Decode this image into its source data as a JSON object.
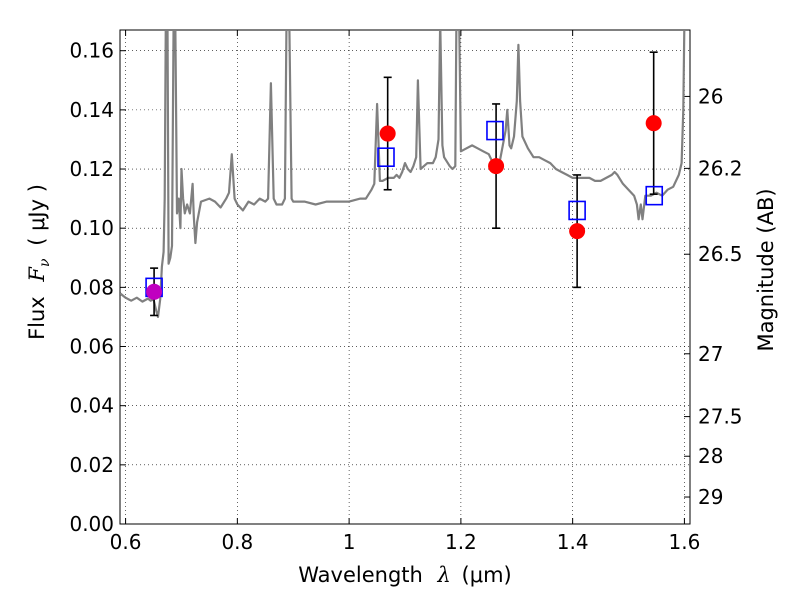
{
  "chart_data": {
    "type": "scatter",
    "xlabel_text": "Wavelength",
    "xlabel_symbol": "λ",
    "xlabel_unit": "(μm)",
    "ylabel_text": "Flux",
    "ylabel_symbol": "F",
    "ylabel_sub": "ν",
    "ylabel_unit": "( μJy )",
    "y2label": "Magnitude (AB)",
    "xlim": [
      0.59,
      1.61
    ],
    "ylim": [
      0.0,
      0.167
    ],
    "grid": true,
    "x_ticks": [
      0.6,
      0.8,
      1.0,
      1.2,
      1.4,
      1.6
    ],
    "x_tick_labels": [
      "0.6",
      "0.8",
      "1",
      "1.2",
      "1.4",
      "1.6"
    ],
    "y_ticks": [
      0.0,
      0.02,
      0.04,
      0.06,
      0.08,
      0.1,
      0.12,
      0.14,
      0.16
    ],
    "y_tick_labels": [
      "0.00",
      "0.02",
      "0.04",
      "0.06",
      "0.08",
      "0.10",
      "0.12",
      "0.14",
      "0.16"
    ],
    "y2_tick_labels": [
      "26",
      "26.2",
      "26.5",
      "27",
      "27.5",
      "28",
      "29"
    ],
    "y2_tick_values_mag": [
      26,
      26.2,
      26.5,
      27,
      27.5,
      28,
      29
    ],
    "series": [
      {
        "kind": "spectrum",
        "color": "#808080",
        "points": [
          [
            0.59,
            0.078
          ],
          [
            0.6,
            0.0765
          ],
          [
            0.61,
            0.0755
          ],
          [
            0.62,
            0.0765
          ],
          [
            0.63,
            0.0752
          ],
          [
            0.64,
            0.0762
          ],
          [
            0.645,
            0.0755
          ],
          [
            0.65,
            0.076
          ],
          [
            0.655,
            0.072
          ],
          [
            0.658,
            0.07
          ],
          [
            0.662,
            0.076
          ],
          [
            0.665,
            0.087
          ],
          [
            0.668,
            0.092
          ],
          [
            0.67,
            0.11
          ],
          [
            0.672,
            0.17
          ],
          [
            0.675,
            0.17
          ],
          [
            0.677,
            0.088
          ],
          [
            0.68,
            0.09
          ],
          [
            0.683,
            0.094
          ],
          [
            0.686,
            0.17
          ],
          [
            0.689,
            0.17
          ],
          [
            0.692,
            0.105
          ],
          [
            0.695,
            0.11
          ],
          [
            0.698,
            0.1
          ],
          [
            0.7,
            0.12
          ],
          [
            0.703,
            0.11
          ],
          [
            0.706,
            0.105
          ],
          [
            0.71,
            0.108
          ],
          [
            0.715,
            0.105
          ],
          [
            0.72,
            0.115
          ],
          [
            0.722,
            0.104
          ],
          [
            0.725,
            0.095
          ],
          [
            0.728,
            0.102
          ],
          [
            0.735,
            0.109
          ],
          [
            0.75,
            0.11
          ],
          [
            0.76,
            0.109
          ],
          [
            0.77,
            0.107
          ],
          [
            0.78,
            0.11
          ],
          [
            0.785,
            0.112
          ],
          [
            0.79,
            0.125
          ],
          [
            0.795,
            0.11
          ],
          [
            0.8,
            0.108
          ],
          [
            0.81,
            0.106
          ],
          [
            0.82,
            0.109
          ],
          [
            0.83,
            0.108
          ],
          [
            0.84,
            0.11
          ],
          [
            0.85,
            0.109
          ],
          [
            0.855,
            0.11
          ],
          [
            0.86,
            0.149
          ],
          [
            0.865,
            0.11
          ],
          [
            0.87,
            0.108
          ],
          [
            0.875,
            0.108
          ],
          [
            0.88,
            0.108
          ],
          [
            0.885,
            0.11
          ],
          [
            0.888,
            0.17
          ],
          [
            0.893,
            0.17
          ],
          [
            0.897,
            0.11
          ],
          [
            0.9,
            0.109
          ],
          [
            0.92,
            0.109
          ],
          [
            0.94,
            0.108
          ],
          [
            0.96,
            0.109
          ],
          [
            0.98,
            0.109
          ],
          [
            1.0,
            0.109
          ],
          [
            1.02,
            0.11
          ],
          [
            1.03,
            0.11
          ],
          [
            1.04,
            0.113
          ],
          [
            1.045,
            0.115
          ],
          [
            1.05,
            0.142
          ],
          [
            1.055,
            0.116
          ],
          [
            1.06,
            0.116
          ],
          [
            1.07,
            0.117
          ],
          [
            1.08,
            0.117
          ],
          [
            1.085,
            0.118
          ],
          [
            1.09,
            0.117
          ],
          [
            1.095,
            0.119
          ],
          [
            1.1,
            0.122
          ],
          [
            1.105,
            0.12
          ],
          [
            1.11,
            0.119
          ],
          [
            1.115,
            0.121
          ],
          [
            1.12,
            0.124
          ],
          [
            1.123,
            0.15
          ],
          [
            1.128,
            0.12
          ],
          [
            1.14,
            0.122
          ],
          [
            1.15,
            0.122
          ],
          [
            1.155,
            0.124
          ],
          [
            1.16,
            0.13
          ],
          [
            1.163,
            0.17
          ],
          [
            1.167,
            0.128
          ],
          [
            1.17,
            0.124
          ],
          [
            1.18,
            0.121
          ],
          [
            1.185,
            0.12
          ],
          [
            1.19,
            0.121
          ],
          [
            1.192,
            0.17
          ],
          [
            1.197,
            0.17
          ],
          [
            1.2,
            0.126
          ],
          [
            1.21,
            0.127
          ],
          [
            1.22,
            0.128
          ],
          [
            1.23,
            0.127
          ],
          [
            1.24,
            0.126
          ],
          [
            1.25,
            0.125
          ],
          [
            1.255,
            0.123
          ],
          [
            1.26,
            0.121
          ],
          [
            1.27,
            0.123
          ],
          [
            1.275,
            0.128
          ],
          [
            1.28,
            0.133
          ],
          [
            1.283,
            0.14
          ],
          [
            1.287,
            0.128
          ],
          [
            1.29,
            0.127
          ],
          [
            1.295,
            0.131
          ],
          [
            1.3,
            0.143
          ],
          [
            1.303,
            0.162
          ],
          [
            1.306,
            0.143
          ],
          [
            1.31,
            0.131
          ],
          [
            1.32,
            0.127
          ],
          [
            1.33,
            0.124
          ],
          [
            1.34,
            0.124
          ],
          [
            1.35,
            0.123
          ],
          [
            1.36,
            0.122
          ],
          [
            1.37,
            0.12
          ],
          [
            1.38,
            0.119
          ],
          [
            1.39,
            0.118
          ],
          [
            1.4,
            0.117
          ],
          [
            1.41,
            0.117
          ],
          [
            1.42,
            0.117
          ],
          [
            1.43,
            0.117
          ],
          [
            1.44,
            0.116
          ],
          [
            1.45,
            0.116
          ],
          [
            1.46,
            0.117
          ],
          [
            1.47,
            0.118
          ],
          [
            1.475,
            0.119
          ],
          [
            1.48,
            0.118
          ],
          [
            1.49,
            0.115
          ],
          [
            1.5,
            0.113
          ],
          [
            1.51,
            0.111
          ],
          [
            1.515,
            0.108
          ],
          [
            1.518,
            0.103
          ],
          [
            1.522,
            0.108
          ],
          [
            1.525,
            0.103
          ],
          [
            1.53,
            0.111
          ],
          [
            1.54,
            0.111
          ],
          [
            1.55,
            0.112
          ],
          [
            1.56,
            0.111
          ],
          [
            1.57,
            0.113
          ],
          [
            1.58,
            0.114
          ],
          [
            1.59,
            0.118
          ],
          [
            1.595,
            0.122
          ],
          [
            1.598,
            0.14
          ],
          [
            1.6,
            0.17
          ],
          [
            1.605,
            0.17
          ]
        ]
      },
      {
        "kind": "model_squares",
        "color": "#0000ff",
        "x": [
          0.651,
          1.066,
          1.261,
          1.408,
          1.546
        ],
        "y": [
          0.08,
          0.124,
          0.133,
          0.106,
          0.111
        ]
      },
      {
        "kind": "observed",
        "color": "#ff0000",
        "x": [
          0.651,
          1.069,
          1.263,
          1.408,
          1.545
        ],
        "y": [
          0.0785,
          0.132,
          0.121,
          0.099,
          0.1355
        ],
        "err": [
          0.008,
          0.019,
          0.021,
          0.019,
          0.024
        ],
        "point_colors": [
          "#c000c0",
          "#ff0000",
          "#ff0000",
          "#ff0000",
          "#ff0000"
        ]
      }
    ]
  }
}
